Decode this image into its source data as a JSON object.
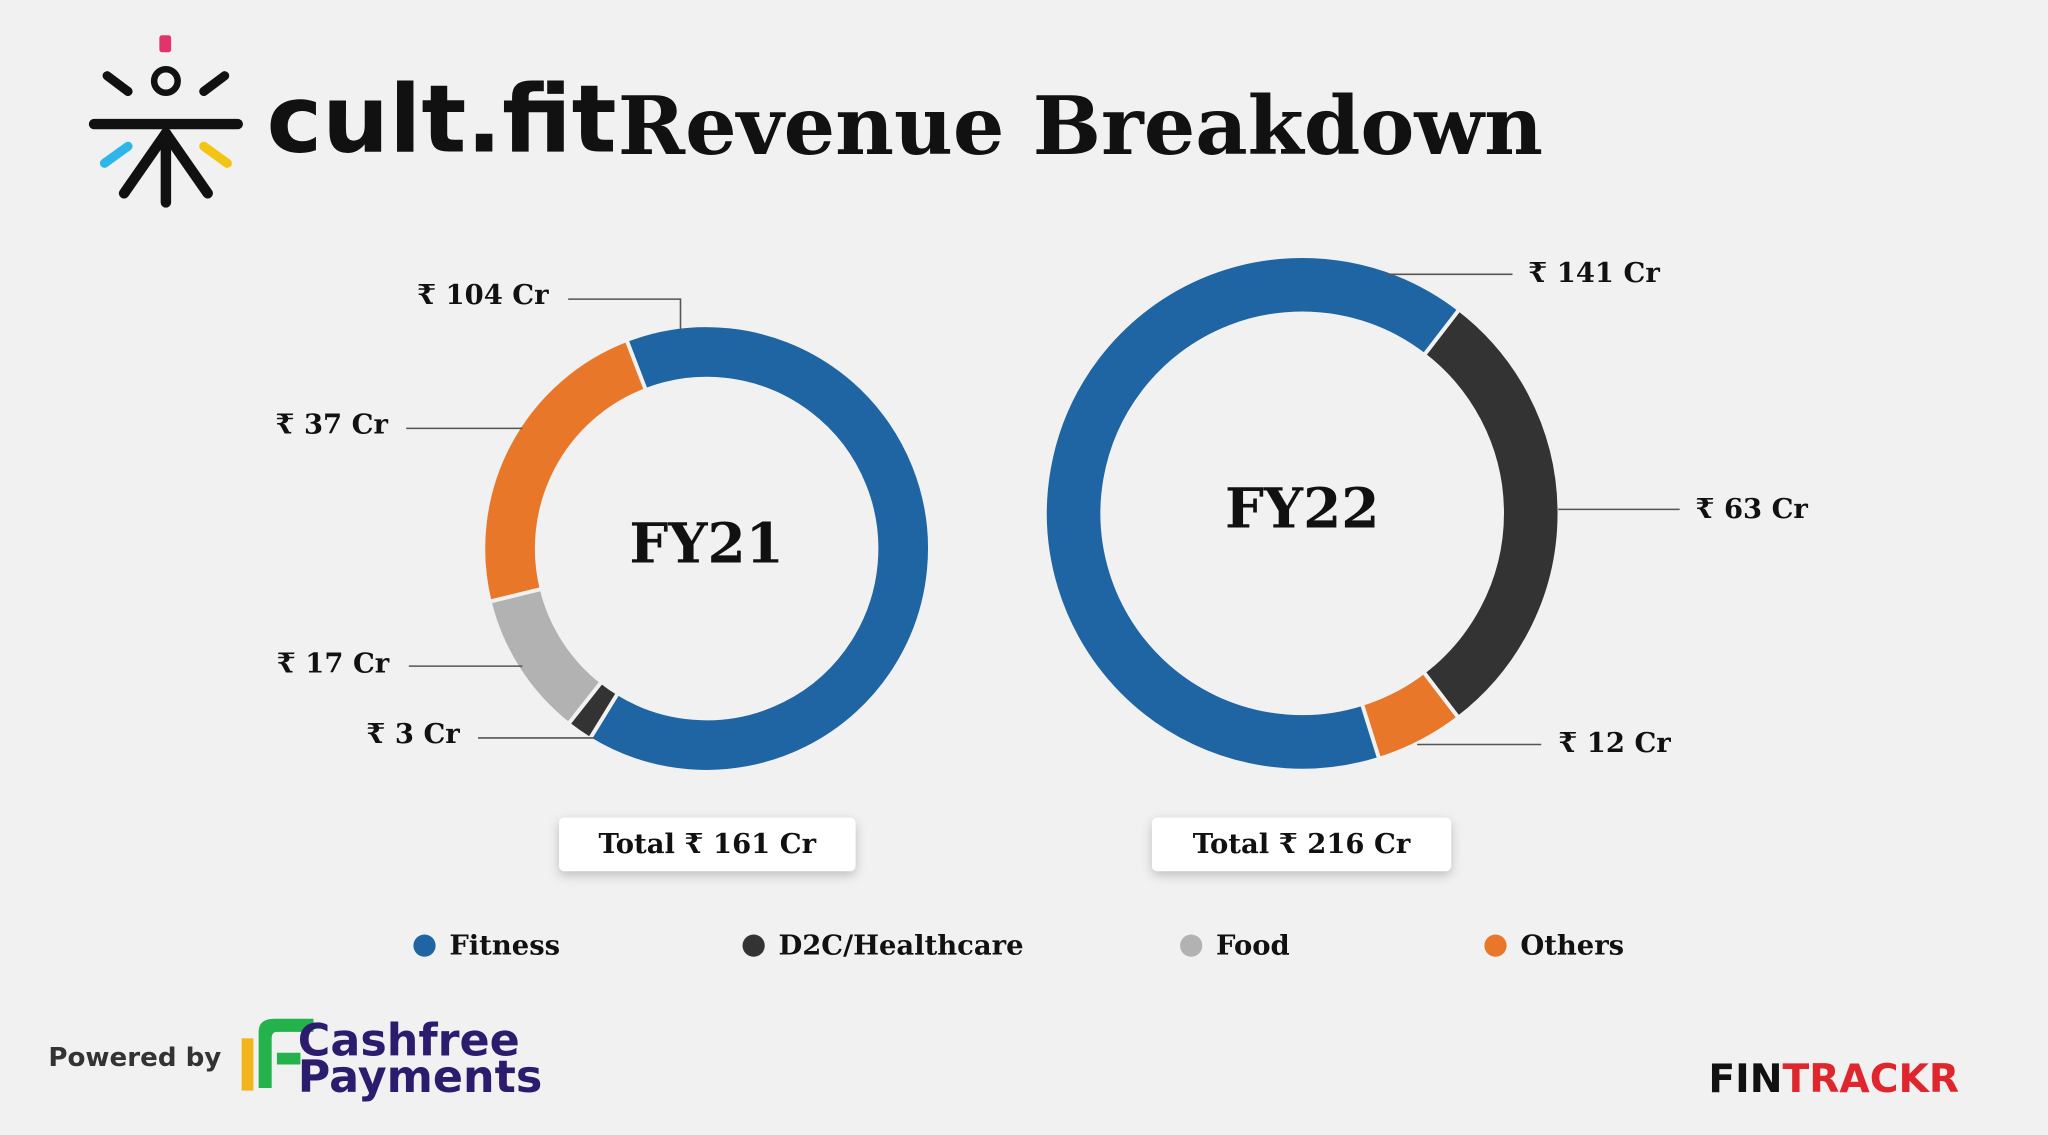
{
  "header": {
    "logo_text": "cult.fit",
    "title": "Revenue Breakdown"
  },
  "chart_data": [
    {
      "type": "donut",
      "center_label": "FY21",
      "categories": [
        "Fitness",
        "D2C/Healthcare",
        "Food",
        "Others"
      ],
      "values": [
        104,
        3,
        17,
        37
      ],
      "value_labels": [
        "₹ 104 Cr",
        "₹ 3 Cr",
        "₹ 17 Cr",
        "₹ 37 Cr"
      ],
      "total": {
        "value": 161,
        "label": "Total ₹ 161 Cr"
      }
    },
    {
      "type": "donut",
      "center_label": "FY22",
      "categories": [
        "D2C/Healthcare",
        "Others",
        "Fitness"
      ],
      "values": [
        63,
        12,
        141
      ],
      "value_labels": [
        "₹ 63 Cr",
        "₹ 12 Cr",
        "₹ 141 Cr"
      ],
      "total": {
        "value": 216,
        "label": "Total ₹ 216 Cr"
      }
    }
  ],
  "legend": {
    "items": [
      {
        "name": "Fitness",
        "color": "#1f65a3"
      },
      {
        "name": "D2C/Healthcare",
        "color": "#333333"
      },
      {
        "name": "Food",
        "color": "#b2b2b2"
      },
      {
        "name": "Others",
        "color": "#e8772a"
      }
    ]
  },
  "footer": {
    "powered_by": "Powered by",
    "partner": [
      "Cashfree",
      "Payments"
    ],
    "brand": [
      "FIN",
      "TRACKR"
    ]
  }
}
